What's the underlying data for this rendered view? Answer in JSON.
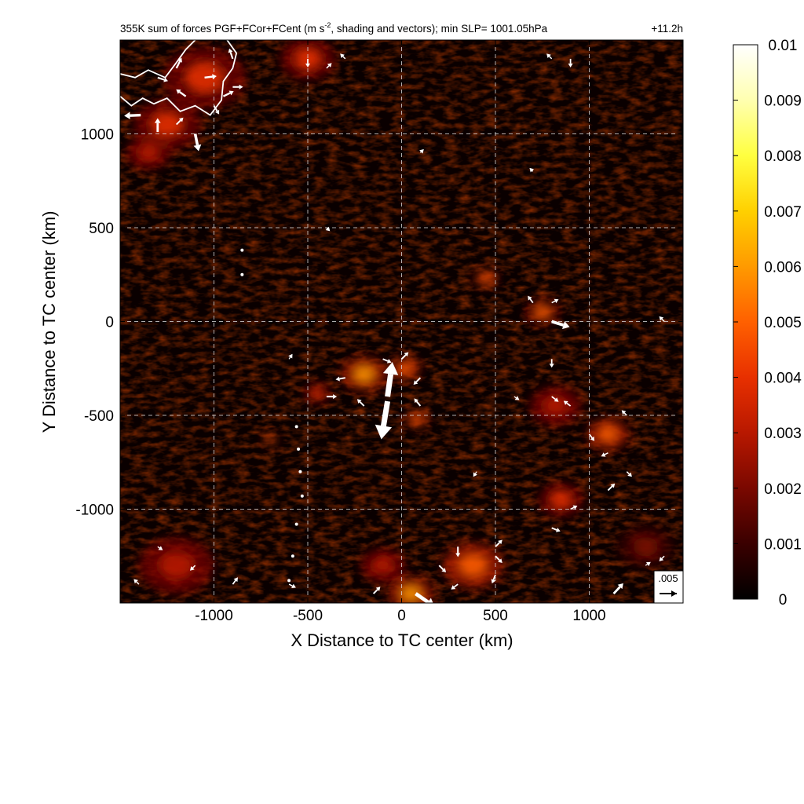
{
  "chart_data": {
    "type": "heatmap",
    "title_prefix": "355K sum of forces PGF+FCor+FCent (m s",
    "title_superscript": "-2",
    "title_suffix": ", shading and vectors); min SLP= 1001.05hPa",
    "time_label": "+11.2h",
    "xlabel": "X Distance to TC center (km)",
    "ylabel": "Y Distance to TC center (km)",
    "xlim": [
      -1500,
      1500
    ],
    "ylim": [
      -1500,
      1500
    ],
    "x_ticks": [
      -1000,
      -500,
      0,
      500,
      1000
    ],
    "y_ticks": [
      -1000,
      -500,
      0,
      500,
      1000
    ],
    "grid": true,
    "colorbar": {
      "range": [
        0,
        0.01
      ],
      "ticks": [
        0,
        0.001,
        0.002,
        0.003,
        0.004,
        0.005,
        0.006,
        0.007,
        0.008,
        0.009,
        0.01
      ],
      "tick_labels": [
        "0",
        "0.001",
        "0.002",
        "0.003",
        "0.004",
        "0.005",
        "0.006",
        "0.007",
        "0.008",
        "0.009",
        "0.01"
      ],
      "colors": [
        "#000000",
        "#3a0000",
        "#7a0800",
        "#b81800",
        "#e83000",
        "#ff6000",
        "#ff9a00",
        "#ffd000",
        "#ffff40",
        "#ffffb0",
        "#ffffff"
      ]
    },
    "reference_vector": {
      "label": ".005",
      "magnitude": 0.005
    },
    "hotspots": [
      {
        "x": -1250,
        "y": 1050,
        "r": 180,
        "v": 0.0042
      },
      {
        "x": -1050,
        "y": 1300,
        "r": 220,
        "v": 0.0035
      },
      {
        "x": -500,
        "y": 1400,
        "r": 150,
        "v": 0.0038
      },
      {
        "x": -1350,
        "y": 900,
        "r": 120,
        "v": 0.003
      },
      {
        "x": -200,
        "y": -280,
        "r": 120,
        "v": 0.0058
      },
      {
        "x": 20,
        "y": -250,
        "r": 80,
        "v": 0.005
      },
      {
        "x": 80,
        "y": -520,
        "r": 60,
        "v": 0.0055
      },
      {
        "x": -450,
        "y": -380,
        "r": 70,
        "v": 0.004
      },
      {
        "x": 450,
        "y": 230,
        "r": 60,
        "v": 0.005
      },
      {
        "x": 750,
        "y": 50,
        "r": 90,
        "v": 0.0045
      },
      {
        "x": 820,
        "y": -450,
        "r": 140,
        "v": 0.0032
      },
      {
        "x": 1100,
        "y": -600,
        "r": 110,
        "v": 0.0046
      },
      {
        "x": 850,
        "y": -950,
        "r": 120,
        "v": 0.004
      },
      {
        "x": 380,
        "y": -1300,
        "r": 160,
        "v": 0.0052
      },
      {
        "x": 50,
        "y": -1450,
        "r": 120,
        "v": 0.006
      },
      {
        "x": -1200,
        "y": -1300,
        "r": 200,
        "v": 0.0028
      },
      {
        "x": -700,
        "y": -630,
        "r": 40,
        "v": 0.0045
      },
      {
        "x": 1300,
        "y": -1200,
        "r": 150,
        "v": 0.0022
      },
      {
        "x": -100,
        "y": -1300,
        "r": 120,
        "v": 0.0034
      }
    ],
    "vectors": [
      {
        "x": -75,
        "y": -425,
        "u": -0.0018,
        "v": -0.011
      },
      {
        "x": -75,
        "y": -400,
        "u": 0.0014,
        "v": 0.01
      },
      {
        "x": 75,
        "y": -1450,
        "u": 0.0055,
        "v": -0.0038
      },
      {
        "x": 1130,
        "y": -1450,
        "u": 0.0028,
        "v": 0.003
      },
      {
        "x": 800,
        "y": 0,
        "u": 0.0052,
        "v": -0.0016
      },
      {
        "x": -1390,
        "y": 1100,
        "u": -0.0048,
        "v": -0.0002
      },
      {
        "x": -1300,
        "y": 1010,
        "u": 0,
        "v": 0.004
      },
      {
        "x": -1100,
        "y": 1000,
        "u": 0.001,
        "v": -0.005
      },
      {
        "x": -1050,
        "y": 1300,
        "u": 0.0035,
        "v": 0.0004
      },
      {
        "x": -1150,
        "y": 1200,
        "u": -0.0028,
        "v": 0.002
      },
      {
        "x": -950,
        "y": 1200,
        "u": 0.003,
        "v": 0.0015
      },
      {
        "x": -900,
        "y": 1250,
        "u": 0.003,
        "v": 0.0
      },
      {
        "x": -1300,
        "y": 1300,
        "u": 0.003,
        "v": -0.001
      },
      {
        "x": -1200,
        "y": 1350,
        "u": 0.0015,
        "v": 0.003
      },
      {
        "x": -900,
        "y": 1400,
        "u": -0.001,
        "v": 0.003
      },
      {
        "x": -1000,
        "y": 1150,
        "u": 0.0015,
        "v": -0.0025
      },
      {
        "x": -1200,
        "y": 1050,
        "u": 0.002,
        "v": 0.002
      },
      {
        "x": -300,
        "y": -300,
        "u": -0.0028,
        "v": -0.0005
      },
      {
        "x": -400,
        "y": -400,
        "u": 0.003,
        "v": 0.0
      },
      {
        "x": -200,
        "y": -450,
        "u": -0.002,
        "v": 0.002
      },
      {
        "x": 100,
        "y": -300,
        "u": -0.002,
        "v": -0.002
      },
      {
        "x": 100,
        "y": -450,
        "u": -0.0018,
        "v": 0.0022
      },
      {
        "x": 0,
        "y": -200,
        "u": 0.002,
        "v": 0.002
      },
      {
        "x": -100,
        "y": -200,
        "u": 0.0025,
        "v": -0.001
      },
      {
        "x": 700,
        "y": 100,
        "u": -0.0015,
        "v": 0.002
      },
      {
        "x": 800,
        "y": 100,
        "u": 0.002,
        "v": 0.001
      },
      {
        "x": 800,
        "y": -200,
        "u": 0.0,
        "v": -0.0025
      },
      {
        "x": 800,
        "y": -400,
        "u": 0.002,
        "v": -0.0015
      },
      {
        "x": 900,
        "y": -450,
        "u": -0.002,
        "v": 0.0015
      },
      {
        "x": 1000,
        "y": -600,
        "u": 0.0015,
        "v": -0.002
      },
      {
        "x": 1100,
        "y": -700,
        "u": -0.002,
        "v": -0.001
      },
      {
        "x": 900,
        "y": -1000,
        "u": 0.002,
        "v": 0.001
      },
      {
        "x": 800,
        "y": -1100,
        "u": 0.0025,
        "v": -0.001
      },
      {
        "x": 1100,
        "y": -900,
        "u": 0.002,
        "v": 0.002
      },
      {
        "x": 300,
        "y": -1200,
        "u": 0.0,
        "v": -0.003
      },
      {
        "x": 500,
        "y": -1200,
        "u": 0.002,
        "v": 0.002
      },
      {
        "x": 500,
        "y": -1350,
        "u": -0.001,
        "v": -0.0025
      },
      {
        "x": 200,
        "y": -1300,
        "u": 0.002,
        "v": -0.002
      },
      {
        "x": -150,
        "y": -1450,
        "u": 0.002,
        "v": 0.002
      },
      {
        "x": 300,
        "y": -1400,
        "u": -0.002,
        "v": -0.0015
      },
      {
        "x": 500,
        "y": -1250,
        "u": 0.002,
        "v": -0.002
      },
      {
        "x": -900,
        "y": -1400,
        "u": 0.0015,
        "v": 0.002
      },
      {
        "x": -1100,
        "y": -1300,
        "u": -0.0015,
        "v": -0.0015
      },
      {
        "x": -600,
        "y": -1400,
        "u": 0.002,
        "v": -0.001
      },
      {
        "x": -500,
        "y": 1400,
        "u": 0.0,
        "v": -0.0025
      },
      {
        "x": -400,
        "y": 1350,
        "u": 0.0015,
        "v": 0.0015
      },
      {
        "x": -300,
        "y": 1400,
        "u": -0.0015,
        "v": 0.0015
      },
      {
        "x": 900,
        "y": 1400,
        "u": 0.0,
        "v": -0.0025
      },
      {
        "x": 800,
        "y": 1400,
        "u": -0.0015,
        "v": 0.0015
      },
      {
        "x": 1400,
        "y": 0,
        "u": -0.0015,
        "v": 0.0015
      },
      {
        "x": 1300,
        "y": -1300,
        "u": 0.0015,
        "v": 0.001
      },
      {
        "x": 1400,
        "y": -1250,
        "u": -0.0015,
        "v": -0.0015
      },
      {
        "x": -1300,
        "y": -1200,
        "u": 0.0015,
        "v": -0.001
      },
      {
        "x": -1400,
        "y": -1400,
        "u": -0.0015,
        "v": 0.0015
      },
      {
        "x": -600,
        "y": -200,
        "u": 0.001,
        "v": 0.0015
      },
      {
        "x": 600,
        "y": -400,
        "u": 0.0015,
        "v": -0.001
      },
      {
        "x": 400,
        "y": -800,
        "u": -0.001,
        "v": -0.0015
      },
      {
        "x": 1200,
        "y": -500,
        "u": -0.0015,
        "v": 0.0015
      },
      {
        "x": 1200,
        "y": -800,
        "u": 0.0015,
        "v": -0.0015
      },
      {
        "x": 700,
        "y": 800,
        "u": -0.001,
        "v": 0.001
      },
      {
        "x": -400,
        "y": 500,
        "u": 0.001,
        "v": -0.001
      },
      {
        "x": 100,
        "y": 900,
        "u": 0.001,
        "v": 0.001
      }
    ],
    "coastline_label": "",
    "point_markers": [
      {
        "x": -850,
        "y": 380
      },
      {
        "x": -850,
        "y": 250
      },
      {
        "x": -560,
        "y": -560
      },
      {
        "x": -550,
        "y": -680
      },
      {
        "x": -540,
        "y": -800
      },
      {
        "x": -530,
        "y": -930
      },
      {
        "x": -560,
        "y": -1080
      },
      {
        "x": -580,
        "y": -1250
      },
      {
        "x": -600,
        "y": -1380
      }
    ]
  }
}
